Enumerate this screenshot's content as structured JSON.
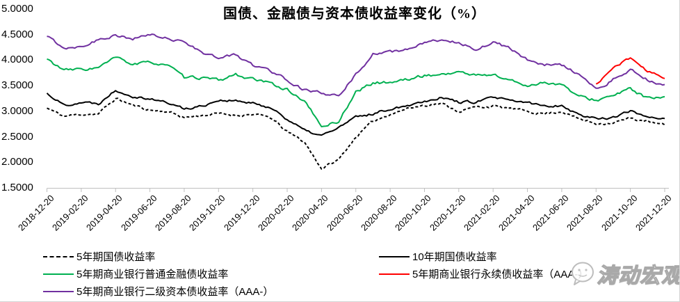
{
  "watermark": {
    "text": "涛动宏观",
    "icon": "wechat-official-account-logo"
  },
  "chart_data": {
    "type": "line",
    "title": "国债、金融债与资本债收益率变化（%）",
    "xlabel": "",
    "ylabel": "",
    "ylim": [
      1.5,
      5.0
    ],
    "grid": false,
    "legend_position": "bottom",
    "axis_color": "#BFBFBF",
    "y_tick_labels": [
      "5.0000",
      "4.5000",
      "4.0000",
      "3.5000",
      "3.0000",
      "2.5000",
      "2.0000",
      "1.5000"
    ],
    "x_tick_labels": [
      "2018-12-20",
      "2019-02-20",
      "2019-04-20",
      "2019-06-20",
      "2019-08-20",
      "2019-10-20",
      "2019-12-20",
      "2020-02-20",
      "2020-04-20",
      "2020-06-20",
      "2020-08-20",
      "2020-10-20",
      "2020-12-20",
      "2021-02-20",
      "2021-04-20",
      "2021-06-20",
      "2021-08-20",
      "2021-10-20",
      "2021-12-20"
    ],
    "anchor_dates": [
      "2018-12-20",
      "2019-01-20",
      "2019-02-20",
      "2019-03-20",
      "2019-04-20",
      "2019-05-20",
      "2019-06-20",
      "2019-07-20",
      "2019-08-20",
      "2019-09-20",
      "2019-10-20",
      "2019-11-20",
      "2019-12-20",
      "2020-01-20",
      "2020-02-20",
      "2020-03-20",
      "2020-04-20",
      "2020-05-20",
      "2020-06-20",
      "2020-07-20",
      "2020-08-20",
      "2020-09-20",
      "2020-10-20",
      "2020-11-20",
      "2020-12-20",
      "2021-01-20",
      "2021-02-20",
      "2021-03-20",
      "2021-04-20",
      "2021-05-20",
      "2021-06-20",
      "2021-07-20",
      "2021-08-20",
      "2021-09-20",
      "2021-10-20",
      "2021-11-20",
      "2021-12-20"
    ],
    "series": [
      {
        "name": "5年期国债收益率",
        "color": "#000000",
        "line_style": "dashed",
        "values": [
          3.06,
          2.9,
          2.94,
          2.95,
          3.25,
          3.12,
          3.02,
          3.0,
          2.88,
          2.92,
          2.95,
          2.92,
          2.94,
          2.88,
          2.6,
          2.4,
          1.88,
          2.05,
          2.5,
          2.8,
          2.95,
          3.05,
          3.12,
          3.15,
          3.0,
          3.08,
          3.1,
          3.05,
          3.0,
          2.95,
          3.0,
          2.85,
          2.76,
          2.78,
          2.86,
          2.8,
          2.72
        ]
      },
      {
        "name": "10年期国债收益率",
        "color": "#000000",
        "line_style": "solid",
        "values": [
          3.35,
          3.12,
          3.18,
          3.15,
          3.42,
          3.3,
          3.25,
          3.17,
          3.05,
          3.1,
          3.22,
          3.2,
          3.15,
          3.08,
          2.85,
          2.62,
          2.52,
          2.68,
          2.88,
          2.95,
          3.05,
          3.12,
          3.2,
          3.28,
          3.18,
          3.18,
          3.27,
          3.2,
          3.17,
          3.1,
          3.12,
          2.93,
          2.86,
          2.88,
          3.0,
          2.9,
          2.86
        ]
      },
      {
        "name": "5年期商业银行普通金融债收益率",
        "color": "#00B050",
        "line_style": "solid",
        "values": [
          4.02,
          3.8,
          3.82,
          3.85,
          4.05,
          3.92,
          3.95,
          3.92,
          3.65,
          3.66,
          3.6,
          3.72,
          3.62,
          3.55,
          3.42,
          3.2,
          2.7,
          2.8,
          3.38,
          3.55,
          3.57,
          3.62,
          3.7,
          3.72,
          3.77,
          3.7,
          3.72,
          3.6,
          3.5,
          3.57,
          3.52,
          3.28,
          3.22,
          3.3,
          3.44,
          3.25,
          3.25
        ]
      },
      {
        "name": "5年期商业银行永续债收益率（AAA-）",
        "color": "#FF0000",
        "line_style": "solid",
        "values": [
          null,
          null,
          null,
          null,
          null,
          null,
          null,
          null,
          null,
          null,
          null,
          null,
          null,
          null,
          null,
          null,
          null,
          null,
          null,
          null,
          null,
          null,
          null,
          null,
          null,
          null,
          null,
          null,
          null,
          null,
          null,
          null,
          3.52,
          3.85,
          4.05,
          3.78,
          3.65
        ]
      },
      {
        "name": "5年期商业银行二级资本债收益率（AAA-）",
        "color": "#7030A0",
        "line_style": "solid",
        "values": [
          4.47,
          4.24,
          4.28,
          4.4,
          4.5,
          4.4,
          4.5,
          4.42,
          4.38,
          4.15,
          4.05,
          4.1,
          3.9,
          3.8,
          3.62,
          3.42,
          3.35,
          3.28,
          3.72,
          4.12,
          4.15,
          4.22,
          4.32,
          4.4,
          4.35,
          4.22,
          4.36,
          4.22,
          4.0,
          3.92,
          3.9,
          3.72,
          3.42,
          3.62,
          3.8,
          3.62,
          3.5
        ]
      }
    ]
  }
}
